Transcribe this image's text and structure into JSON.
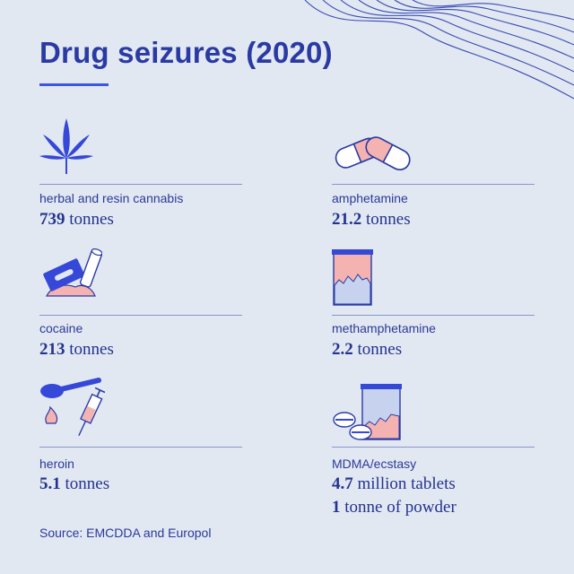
{
  "title": "Drug seizures (2020)",
  "items": [
    {
      "name": "herbal and resin cannabis",
      "amount": "739",
      "unit": "tonnes",
      "icon": "cannabis-leaf-icon"
    },
    {
      "name": "amphetamine",
      "amount": "21.2",
      "unit": "tonnes",
      "icon": "pills-icon"
    },
    {
      "name": "cocaine",
      "amount": "213",
      "unit": "tonnes",
      "icon": "razor-blade-cocaine-icon"
    },
    {
      "name": "methamphetamine",
      "amount": "2.2",
      "unit": "tonnes",
      "icon": "crystal-jar-icon"
    },
    {
      "name": "heroin",
      "amount": "5.1",
      "unit": "tonnes",
      "icon": "spoon-syringe-icon"
    },
    {
      "name": "MDMA/ecstasy",
      "amount": "4.7",
      "unit": "million tablets",
      "amount2": "1",
      "unit2": "tonne of powder",
      "icon": "tablets-jar-icon"
    }
  ],
  "source": "Source: EMCDDA and Europol",
  "colors": {
    "background": "#e2e8f2",
    "primary": "#2a3aa3",
    "accent": "#3c55e0",
    "pink": "#f4b3b0"
  }
}
